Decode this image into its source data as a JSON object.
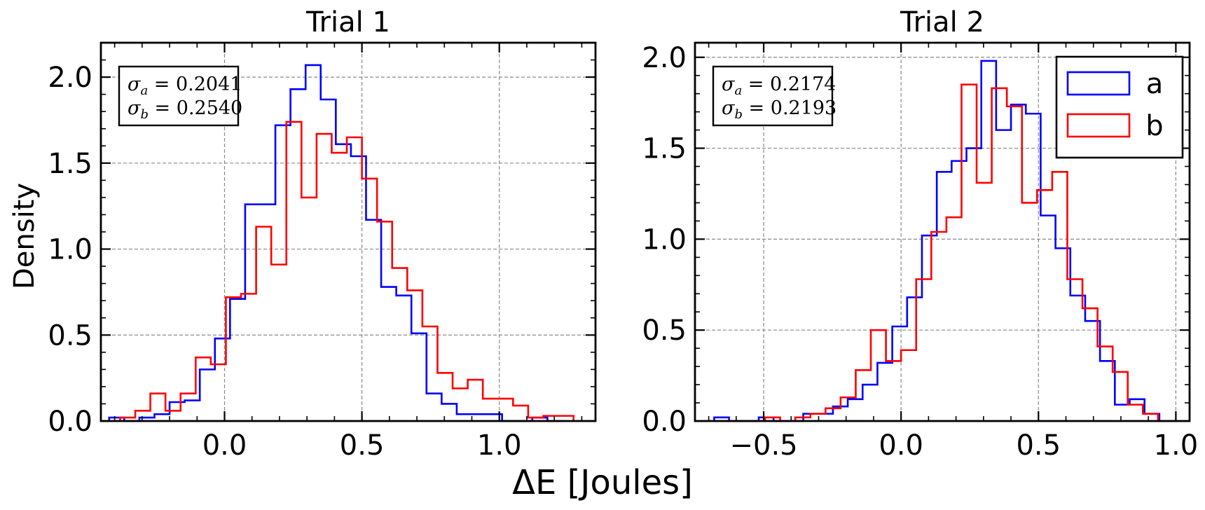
{
  "figure": {
    "xlabel": "ΔE [Joules]",
    "ylabel": "Density"
  },
  "chart_data": [
    {
      "type": "histogram",
      "title": "Trial 1",
      "xlim": [
        -0.45,
        1.35
      ],
      "ylim": [
        0,
        2.2
      ],
      "xticks": [
        0.0,
        0.5,
        1.0
      ],
      "xtick_labels": [
        "0.0",
        "0.5",
        "1.0"
      ],
      "yticks": [
        0.0,
        0.5,
        1.0,
        1.5,
        2.0
      ],
      "ytick_labels": [
        "0.0",
        "0.5",
        "1.0",
        "1.5",
        "2.0"
      ],
      "grid": true,
      "stats": [
        {
          "symbol": "σ",
          "sub": "a",
          "value": "0.2041"
        },
        {
          "symbol": "σ",
          "sub": "b",
          "value": "0.2540"
        }
      ],
      "series": [
        {
          "name": "a",
          "color": "#0000ff",
          "edges": [
            -0.42,
            -0.365,
            -0.31,
            -0.255,
            -0.2,
            -0.145,
            -0.09,
            -0.035,
            0.02,
            0.075,
            0.13,
            0.185,
            0.24,
            0.295,
            0.35,
            0.405,
            0.46,
            0.515,
            0.57,
            0.625,
            0.68,
            0.735,
            0.79,
            0.845,
            0.9,
            0.955,
            1.01,
            1.065,
            1.12,
            1.175,
            1.23
          ],
          "values": [
            0.02,
            0.0,
            0.02,
            0.04,
            0.11,
            0.12,
            0.3,
            0.48,
            0.71,
            1.26,
            1.26,
            1.72,
            1.93,
            2.07,
            1.87,
            1.61,
            1.54,
            1.17,
            0.78,
            0.73,
            0.51,
            0.16,
            0.1,
            0.04,
            0.04,
            0.04,
            0.0,
            0.0,
            0.02,
            0.0
          ]
        },
        {
          "name": "b",
          "color": "#ff0000",
          "edges": [
            -0.38,
            -0.325,
            -0.27,
            -0.215,
            -0.16,
            -0.105,
            -0.05,
            0.005,
            0.06,
            0.115,
            0.17,
            0.225,
            0.28,
            0.335,
            0.39,
            0.445,
            0.5,
            0.555,
            0.61,
            0.665,
            0.72,
            0.775,
            0.83,
            0.885,
            0.94,
            0.995,
            1.05,
            1.105,
            1.16,
            1.215,
            1.27
          ],
          "values": [
            0.02,
            0.06,
            0.16,
            0.06,
            0.16,
            0.37,
            0.33,
            0.72,
            0.74,
            1.13,
            0.91,
            1.74,
            1.3,
            1.67,
            1.56,
            1.65,
            1.41,
            1.16,
            0.89,
            0.76,
            0.55,
            0.28,
            0.19,
            0.24,
            0.13,
            0.13,
            0.09,
            0.02,
            0.03,
            0.03
          ]
        }
      ]
    },
    {
      "type": "histogram",
      "title": "Trial 2",
      "xlim": [
        -0.75,
        1.05
      ],
      "ylim": [
        0,
        2.08
      ],
      "xticks": [
        -0.5,
        0.0,
        0.5,
        1.0
      ],
      "xtick_labels": [
        "−0.5",
        "0.0",
        "0.5",
        "1.0"
      ],
      "yticks": [
        0.0,
        0.5,
        1.0,
        1.5,
        2.0
      ],
      "ytick_labels": [
        "0.0",
        "0.5",
        "1.0",
        "1.5",
        "2.0"
      ],
      "grid": true,
      "legend": {
        "placement": "upper-right",
        "entries": [
          "a",
          "b"
        ]
      },
      "stats": [
        {
          "symbol": "σ",
          "sub": "a",
          "value": "0.2174"
        },
        {
          "symbol": "σ",
          "sub": "b",
          "value": "0.2193"
        }
      ],
      "series": [
        {
          "name": "a",
          "color": "#0000ff",
          "edges": [
            -0.68,
            -0.626,
            -0.572,
            -0.518,
            -0.464,
            -0.41,
            -0.356,
            -0.302,
            -0.248,
            -0.194,
            -0.14,
            -0.086,
            -0.032,
            0.022,
            0.076,
            0.13,
            0.184,
            0.238,
            0.292,
            0.346,
            0.4,
            0.454,
            0.508,
            0.562,
            0.616,
            0.67,
            0.724,
            0.778,
            0.832,
            0.886,
            0.94
          ],
          "values": [
            0.02,
            0.0,
            0.0,
            0.02,
            0.0,
            0.0,
            0.04,
            0.04,
            0.08,
            0.12,
            0.2,
            0.32,
            0.52,
            0.68,
            1.02,
            1.37,
            1.43,
            1.5,
            1.98,
            1.6,
            1.74,
            1.69,
            1.13,
            0.95,
            0.69,
            0.55,
            0.33,
            0.09,
            0.12,
            0.04
          ]
        },
        {
          "name": "b",
          "color": "#ff0000",
          "edges": [
            -0.66,
            -0.605,
            -0.55,
            -0.495,
            -0.44,
            -0.385,
            -0.33,
            -0.275,
            -0.22,
            -0.165,
            -0.11,
            -0.055,
            0.0,
            0.055,
            0.11,
            0.165,
            0.22,
            0.275,
            0.33,
            0.385,
            0.44,
            0.495,
            0.55,
            0.605,
            0.66,
            0.715,
            0.77,
            0.825,
            0.88,
            0.935,
            0.99
          ],
          "values": [
            0.0,
            0.0,
            0.0,
            0.02,
            0.0,
            0.02,
            0.04,
            0.07,
            0.13,
            0.28,
            0.5,
            0.33,
            0.39,
            0.78,
            1.04,
            1.12,
            1.85,
            1.31,
            1.83,
            1.73,
            1.2,
            1.27,
            1.37,
            0.78,
            0.62,
            0.41,
            0.27,
            0.09,
            0.04,
            0.0
          ]
        }
      ]
    }
  ]
}
